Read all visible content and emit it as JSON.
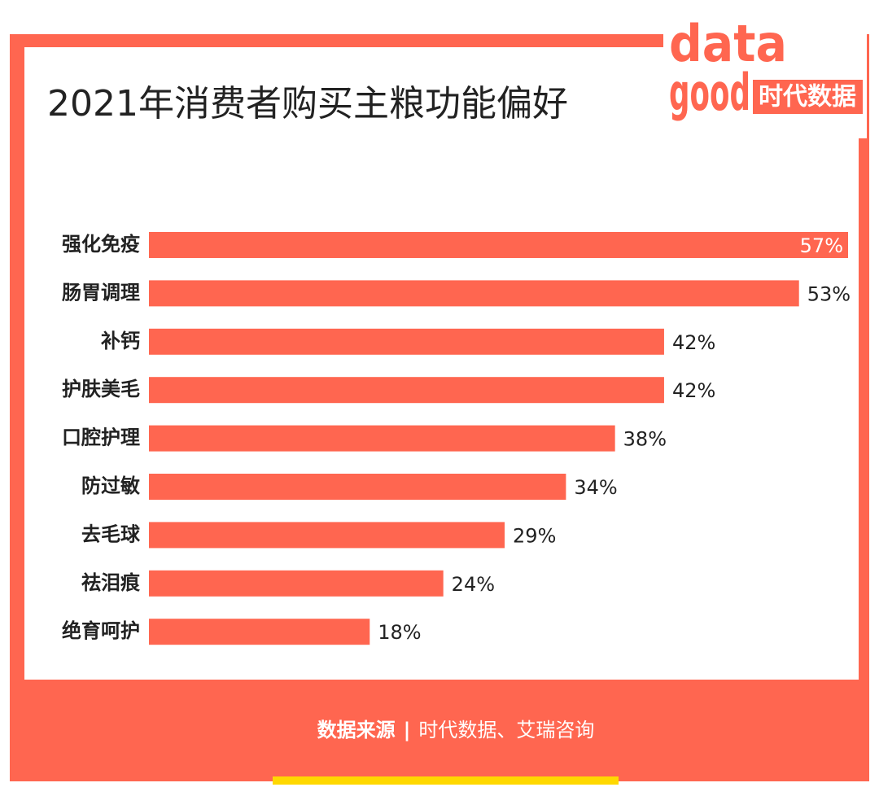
{
  "brand": {
    "logo": [
      "data",
      "good"
    ],
    "name": "时代数据"
  },
  "chart_data": {
    "type": "bar",
    "orientation": "horizontal",
    "title": "2021年消费者购买主粮功能偏好",
    "categories": [
      "强化免疫",
      "肠胃调理",
      "补钙",
      "护肤美毛",
      "口腔护理",
      "防过敏",
      "去毛球",
      "祛泪痕",
      "绝育呵护"
    ],
    "values": [
      57,
      53,
      42,
      42,
      38,
      34,
      29,
      24,
      18
    ],
    "value_labels": [
      "57%",
      "53%",
      "42%",
      "42%",
      "38%",
      "34%",
      "29%",
      "24%",
      "18%"
    ],
    "color": "#ff6650"
  },
  "footer": {
    "label": "数据来源",
    "separator": "|",
    "source": "时代数据、艾瑞咨询"
  }
}
